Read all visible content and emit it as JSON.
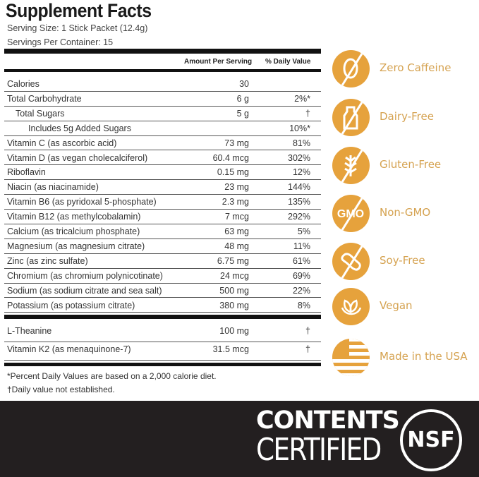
{
  "facts": {
    "title": "Supplement Facts",
    "serving_size": "Serving Size: 1 Stick Packet (12.4g)",
    "servings_per_container": "Servings Per Container: 15",
    "col_amount": "Amount Per Serving",
    "col_dv": "% Daily Value",
    "rows": [
      {
        "name": "Calories",
        "amount": "30",
        "dv": ""
      },
      {
        "name": "Total Carbohydrate",
        "amount": "6 g",
        "dv": "2%*"
      },
      {
        "name": "Total Sugars",
        "amount": "5 g",
        "dv": "†"
      },
      {
        "name": "Includes 5g Added Sugars",
        "amount": "",
        "dv": "10%*"
      },
      {
        "name": "Vitamin C (as ascorbic acid)",
        "amount": "73 mg",
        "dv": "81%"
      },
      {
        "name": "Vitamin D (as  vegan cholecalciferol)",
        "amount": "60.4 mcg",
        "dv": "302%"
      },
      {
        "name": "Riboflavin",
        "amount": "0.15 mg",
        "dv": "12%"
      },
      {
        "name": "Niacin (as niacinamide)",
        "amount": "23 mg",
        "dv": "144%"
      },
      {
        "name": "Vitamin B6 (as pyridoxal 5-phosphate)",
        "amount": "2.3 mg",
        "dv": "135%"
      },
      {
        "name": "Vitamin B12 (as methylcobalamin)",
        "amount": "7 mcg",
        "dv": "292%"
      },
      {
        "name": "Calcium (as tricalcium phosphate)",
        "amount": "63 mg",
        "dv": "5%"
      },
      {
        "name": "Magnesium (as magnesium citrate)",
        "amount": "48 mg",
        "dv": "11%"
      },
      {
        "name": "Zinc (as zinc sulfate)",
        "amount": "6.75 mg",
        "dv": "61%"
      },
      {
        "name": "Chromium (as chromium polynicotinate)",
        "amount": "24 mcg",
        "dv": "69%"
      },
      {
        "name": "Sodium (as sodium citrate and sea salt)",
        "amount": "500 mg",
        "dv": "22%"
      },
      {
        "name": "Potassium (as potassium citrate)",
        "amount": "380 mg",
        "dv": "8%"
      }
    ],
    "other_rows": [
      {
        "name": "L-Theanine",
        "amount": "100 mg",
        "dv": "†"
      },
      {
        "name": "Vitamin K2 (as menaquinone-7)",
        "amount": "31.5 mcg",
        "dv": "†"
      }
    ],
    "footnote1": "*Percent Daily Values are based on a 2,000 calorie diet.",
    "footnote2": "†Daily value not established."
  },
  "badges": [
    {
      "label": "Zero Caffeine",
      "icon": "no-coffee-bean-icon"
    },
    {
      "label": "Dairy-Free",
      "icon": "no-milk-bottle-icon"
    },
    {
      "label": "Gluten-Free",
      "icon": "no-wheat-icon"
    },
    {
      "label": "Non-GMO",
      "icon": "no-gmo-icon",
      "icon_text": "GMO"
    },
    {
      "label": "Soy-Free",
      "icon": "no-soy-icon"
    },
    {
      "label": "Vegan",
      "icon": "leaf-icon"
    },
    {
      "label": "Made in the USA",
      "icon": "us-flag-icon"
    }
  ],
  "badge_color": "#E6A23C",
  "banner": {
    "line1": "CONTENTS",
    "line2": "CERTIFIED",
    "seal": "NSF"
  }
}
